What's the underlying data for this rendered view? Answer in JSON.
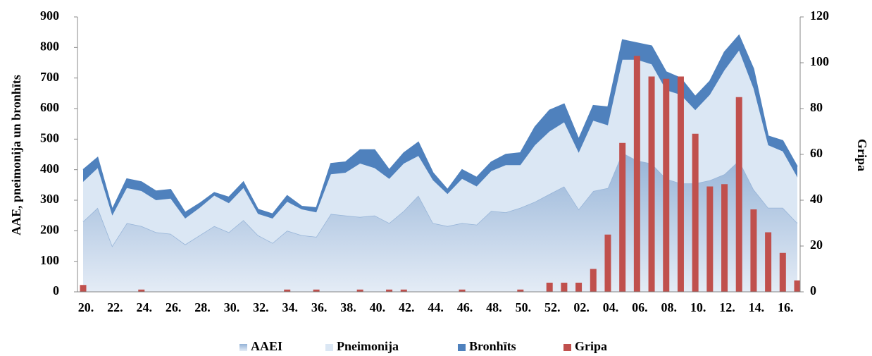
{
  "chart_data": {
    "type": "area",
    "stacked": true,
    "ylabel": "AAE, pneimonija un bronhīts",
    "y2label": "Gripa",
    "categories": [
      "20.",
      null,
      "22.",
      null,
      "24.",
      null,
      "26.",
      null,
      "28.",
      null,
      "30.",
      null,
      "32.",
      null,
      "34.",
      null,
      "36.",
      null,
      "38.",
      null,
      "40.",
      null,
      "42.",
      null,
      "44.",
      null,
      "46.",
      null,
      "48.",
      null,
      "50.",
      null,
      "52.",
      null,
      "02.",
      null,
      "04.",
      null,
      "06.",
      null,
      "08.",
      null,
      "10.",
      null,
      "12.",
      null,
      "14.",
      null,
      "16.",
      null
    ],
    "series": [
      {
        "name": "AAEI",
        "type": "area",
        "color": "#95b3d7",
        "values": [
          230,
          275,
          150,
          225,
          215,
          195,
          190,
          155,
          185,
          215,
          195,
          235,
          185,
          160,
          200,
          185,
          180,
          255,
          250,
          245,
          250,
          225,
          265,
          315,
          225,
          215,
          225,
          220,
          265,
          260,
          275,
          295,
          320,
          345,
          270,
          330,
          340,
          455,
          430,
          420,
          370,
          355,
          355,
          365,
          385,
          430,
          335,
          275,
          275,
          225
        ]
      },
      {
        "name": "Pneimonija",
        "type": "area",
        "color": "#dbe7f4",
        "values": [
          130,
          130,
          100,
          115,
          115,
          105,
          115,
          85,
          90,
          100,
          95,
          105,
          70,
          80,
          95,
          85,
          80,
          130,
          140,
          175,
          155,
          145,
          155,
          130,
          140,
          105,
          145,
          125,
          130,
          155,
          140,
          185,
          205,
          210,
          185,
          230,
          205,
          305,
          330,
          325,
          290,
          290,
          240,
          280,
          340,
          360,
          330,
          205,
          185,
          150
        ]
      },
      {
        "name": "Bronhīts",
        "type": "area",
        "color": "#4f81bd",
        "values": [
          40,
          35,
          20,
          30,
          30,
          30,
          30,
          20,
          15,
          10,
          20,
          20,
          15,
          15,
          20,
          10,
          15,
          35,
          35,
          45,
          60,
          30,
          35,
          45,
          25,
          15,
          30,
          30,
          30,
          35,
          40,
          60,
          70,
          60,
          45,
          50,
          60,
          65,
          55,
          60,
          60,
          55,
          45,
          45,
          60,
          50,
          65,
          30,
          35,
          35
        ]
      },
      {
        "name": "Gripa",
        "type": "bar",
        "axis": "y2",
        "color": "#c0504d",
        "values": [
          3,
          0,
          0,
          0,
          1,
          0,
          0,
          0,
          0,
          0,
          0,
          0,
          0,
          0,
          1,
          0,
          1,
          0,
          0,
          1,
          0,
          1,
          1,
          0,
          0,
          0,
          1,
          0,
          0,
          0,
          1,
          0,
          4,
          4,
          4,
          10,
          25,
          65,
          103,
          94,
          93,
          94,
          69,
          46,
          47,
          85,
          36,
          26,
          17,
          5
        ]
      }
    ],
    "ylim": [
      0,
      900
    ],
    "yticks": [
      0,
      100,
      200,
      300,
      400,
      500,
      600,
      700,
      800,
      900
    ],
    "y2lim": [
      0,
      120
    ],
    "y2ticks": [
      0,
      20,
      40,
      60,
      80,
      100,
      120
    ],
    "grid": false,
    "legend": "bottom"
  }
}
